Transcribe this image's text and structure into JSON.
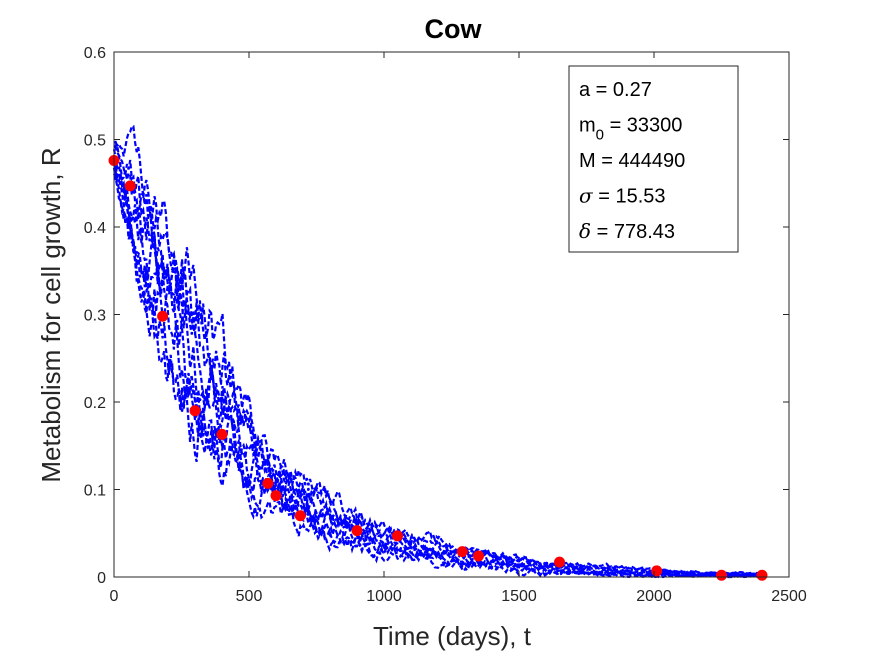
{
  "chart_data": {
    "type": "line",
    "title": "Cow",
    "xlabel": "Time (days), t",
    "ylabel": "Metabolism for cell growth, R",
    "xlim": [
      0,
      2500
    ],
    "ylim": [
      0,
      0.6
    ],
    "xticks": [
      0,
      500,
      1000,
      1500,
      2000,
      2500
    ],
    "yticks": [
      0,
      0.1,
      0.2,
      0.3,
      0.4,
      0.5,
      0.6
    ],
    "xtick_labels": [
      "0",
      "500",
      "1000",
      "1500",
      "2000",
      "2500"
    ],
    "ytick_labels": [
      "0",
      "0.1",
      "0.2",
      "0.3",
      "0.4",
      "0.5",
      "0.6"
    ],
    "grid": false,
    "box": true,
    "series_style": {
      "simulations": {
        "color": "#0000ff",
        "line": "dashed"
      },
      "observations": {
        "color": "#ff0000",
        "marker": "circle"
      }
    },
    "observations": {
      "x": [
        0,
        60,
        180,
        300,
        400,
        570,
        600,
        690,
        900,
        1050,
        1290,
        1350,
        1650,
        2010,
        2250,
        2400
      ],
      "y": [
        0.476,
        0.447,
        0.298,
        0.19,
        0.163,
        0.107,
        0.093,
        0.07,
        0.053,
        0.047,
        0.029,
        0.024,
        0.017,
        0.007,
        0.002,
        0.002
      ]
    },
    "simulation_count": 9,
    "simulation_envelope": {
      "x": [
        0,
        50,
        100,
        200,
        300,
        400,
        500,
        600,
        700,
        800,
        900,
        1000,
        1200,
        1400,
        1600,
        1800,
        2000,
        2200,
        2400
      ],
      "lower": [
        0.465,
        0.39,
        0.33,
        0.245,
        0.175,
        0.135,
        0.1,
        0.075,
        0.055,
        0.042,
        0.033,
        0.025,
        0.015,
        0.008,
        0.004,
        0.002,
        0.001,
        0.0005,
        0.0003
      ],
      "upper": [
        0.5,
        0.48,
        0.45,
        0.4,
        0.34,
        0.26,
        0.19,
        0.14,
        0.115,
        0.09,
        0.075,
        0.058,
        0.04,
        0.028,
        0.018,
        0.012,
        0.008,
        0.005,
        0.004
      ]
    },
    "annotation": [
      {
        "base": "a",
        "sub": "",
        "value": " = 0.27",
        "symbol": false
      },
      {
        "base": "m",
        "sub": "0",
        "value": " = 33300",
        "symbol": false
      },
      {
        "base": "M",
        "sub": "",
        "value": " = 444490",
        "symbol": false
      },
      {
        "base": "σ",
        "sub": "",
        "value": " = 15.53",
        "symbol": true
      },
      {
        "base": "δ",
        "sub": "",
        "value": " = 778.43",
        "symbol": true
      }
    ]
  }
}
